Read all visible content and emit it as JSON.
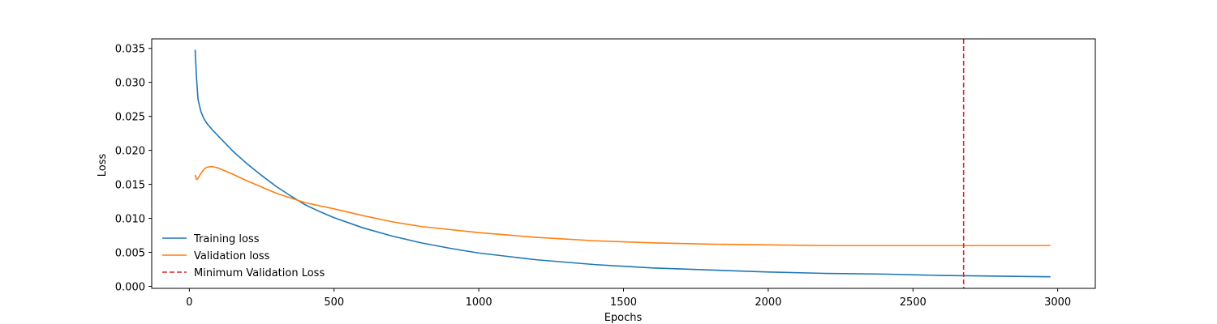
{
  "chart_data": {
    "type": "line",
    "title": "",
    "xlabel": "Epochs",
    "ylabel": "Loss",
    "xlim": [
      -130,
      3130
    ],
    "ylim": [
      -0.0003,
      0.0364
    ],
    "x_ticks": [
      0,
      500,
      1000,
      1500,
      2000,
      2500,
      3000
    ],
    "x_tick_labels": [
      "0",
      "500",
      "1000",
      "1500",
      "2000",
      "2500",
      "3000"
    ],
    "y_ticks": [
      0,
      0.005,
      0.01,
      0.015,
      0.02,
      0.025,
      0.03,
      0.035
    ],
    "y_tick_labels": [
      "0.000",
      "0.005",
      "0.010",
      "0.015",
      "0.020",
      "0.025",
      "0.030",
      "0.035"
    ],
    "grid": false,
    "legend_position": "lower-left",
    "series": [
      {
        "name": "Training loss",
        "color": "#1f77b4",
        "style": "solid",
        "x": [
          20,
          25,
          30,
          40,
          50,
          60,
          80,
          100,
          150,
          200,
          250,
          300,
          350,
          400,
          450,
          500,
          600,
          700,
          800,
          900,
          1000,
          1200,
          1400,
          1600,
          1800,
          2000,
          2200,
          2400,
          2600,
          2800,
          2975
        ],
        "y": [
          0.0348,
          0.0305,
          0.0275,
          0.0257,
          0.0247,
          0.024,
          0.023,
          0.0221,
          0.0199,
          0.018,
          0.0163,
          0.0147,
          0.0133,
          0.012,
          0.011,
          0.0101,
          0.0086,
          0.0074,
          0.0064,
          0.0056,
          0.0049,
          0.0039,
          0.0032,
          0.0027,
          0.0024,
          0.0021,
          0.0019,
          0.0018,
          0.0016,
          0.0015,
          0.0014
        ]
      },
      {
        "name": "Validation loss",
        "color": "#ff7f0e",
        "style": "solid",
        "x": [
          20,
          25,
          30,
          40,
          50,
          60,
          70,
          80,
          100,
          150,
          200,
          300,
          400,
          500,
          600,
          700,
          800,
          1000,
          1200,
          1400,
          1600,
          1800,
          2000,
          2200,
          2400,
          2600,
          2800,
          2975
        ],
        "y": [
          0.0164,
          0.0157,
          0.0159,
          0.0166,
          0.0172,
          0.0175,
          0.0176,
          0.0176,
          0.0174,
          0.0165,
          0.0155,
          0.0137,
          0.0123,
          0.0114,
          0.0104,
          0.0095,
          0.0088,
          0.0079,
          0.0072,
          0.0067,
          0.0064,
          0.0062,
          0.0061,
          0.006,
          0.006,
          0.006,
          0.006,
          0.006
        ]
      }
    ],
    "vlines": [
      {
        "name": "Minimum Validation Loss",
        "color": "#d62728",
        "style": "dashed",
        "x": 2675
      }
    ]
  }
}
